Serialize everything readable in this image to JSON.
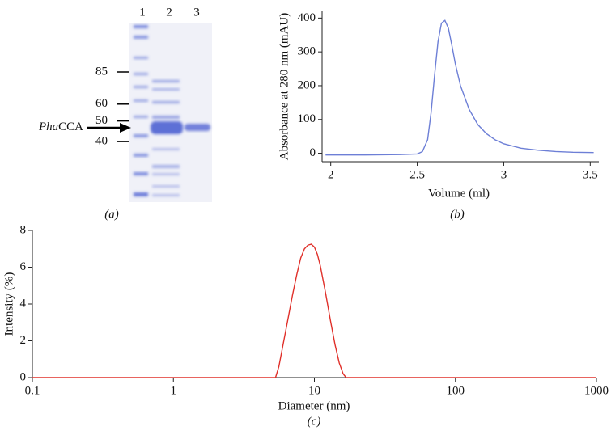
{
  "gel": {
    "lanes": [
      "1",
      "2",
      "3"
    ],
    "markers": [
      85,
      60,
      50,
      40
    ],
    "arrow_label": [
      "Pha",
      "CCA"
    ],
    "caption": "(a)"
  },
  "chart_data": [
    {
      "type": "line",
      "caption": "(b)",
      "xlabel": "Volume (ml)",
      "ylabel": "Absorbance at 280 nm (mAU)",
      "color": "#6d7fd6",
      "x": [
        1.97,
        2.2,
        2.4,
        2.5,
        2.53,
        2.56,
        2.58,
        2.6,
        2.62,
        2.64,
        2.66,
        2.68,
        2.7,
        2.72,
        2.75,
        2.8,
        2.85,
        2.9,
        2.95,
        3.0,
        3.1,
        3.2,
        3.3,
        3.4,
        3.52
      ],
      "values": [
        -5,
        -5,
        -4,
        -2,
        5,
        40,
        120,
        230,
        330,
        385,
        393,
        370,
        320,
        265,
        200,
        130,
        85,
        58,
        40,
        28,
        15,
        9,
        5,
        3,
        2
      ],
      "xlim": [
        1.95,
        3.55
      ],
      "xticks": [
        2,
        2.5,
        3,
        3.5
      ],
      "ylim": [
        -25,
        420
      ],
      "yticks": [
        0,
        100,
        200,
        300,
        400
      ]
    },
    {
      "type": "line",
      "caption": "(c)",
      "xlabel": "Diameter (nm)",
      "ylabel": "Intensity (%)",
      "color": "#e0302a",
      "xscale": "log",
      "x": [
        0.1,
        5.3,
        5.6,
        6,
        6.5,
        7,
        7.5,
        8,
        8.5,
        9,
        9.5,
        10,
        10.5,
        11,
        12,
        13,
        14,
        15,
        16,
        16.8,
        1000
      ],
      "values": [
        0,
        0,
        0.6,
        1.8,
        3.2,
        4.5,
        5.6,
        6.5,
        7.0,
        7.2,
        7.25,
        7.1,
        6.7,
        6.1,
        4.6,
        3.1,
        1.8,
        0.8,
        0.2,
        0,
        0
      ],
      "xlim": [
        0.1,
        1000
      ],
      "xticks": [
        0.1,
        1,
        10,
        100,
        1000
      ],
      "ylim": [
        0,
        8
      ],
      "yticks": [
        0,
        2,
        4,
        6,
        8
      ]
    }
  ]
}
